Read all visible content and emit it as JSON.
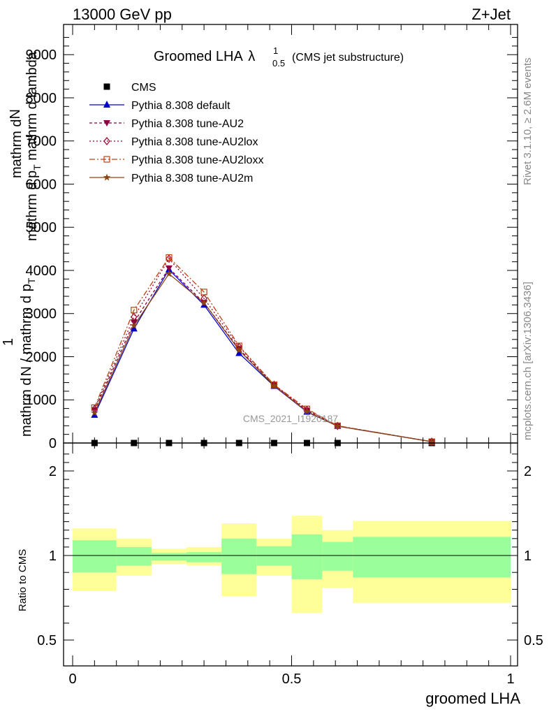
{
  "header": {
    "energy": "13000 GeV pp",
    "process": "Z+Jet"
  },
  "side": {
    "rivet": "Rivet 3.1.10, ≥ 2.6M events",
    "mcplots": "mcplots.cern.ch [arXiv:1306.3436]"
  },
  "watermark": "CMS_2021_I1920187",
  "main_title": {
    "prefix": "Groomed LHA",
    "lambda": "λ",
    "sup": "1",
    "sub": "0.5",
    "suffix": "(CMS jet substructure)"
  },
  "ylabel_main": {
    "line1": "mathrm d",
    "line1b": "N",
    "line2": "mathrm d p",
    "line2b": "T",
    "line2c": " mathrm d lambda",
    "frac_a": "1",
    "frac_b1": "mathrm d",
    "frac_b2": "N / mathrm d p",
    "frac_b3": "T"
  },
  "ylabel_ratio": "Ratio to CMS",
  "xlabel": "groomed LHA",
  "colors": {
    "cms": "#000000",
    "default": "#0000cc",
    "au2": "#8b0040",
    "au2lox": "#a0002a",
    "au2loxx": "#c04010",
    "au2m": "#8b4513",
    "band_outer": "#ffff99",
    "band_inner": "#99ff99"
  },
  "chart_data": [
    {
      "type": "line",
      "x_ticks": [
        "0",
        "0.5",
        "1"
      ],
      "y_ticks": [
        "0",
        "1000",
        "2000",
        "3000",
        "4000",
        "5000",
        "6000",
        "7000",
        "8000",
        "9000"
      ],
      "xlim": [
        0,
        1
      ],
      "ylim": [
        0,
        9700
      ],
      "legend_position": "top-left",
      "series": [
        {
          "key": "cms",
          "name": "CMS",
          "marker": "square",
          "x": [
            0.05,
            0.14,
            0.22,
            0.3,
            0.38,
            0.46,
            0.535,
            0.605,
            0.82
          ],
          "y": [
            0,
            0,
            0,
            0,
            0,
            0,
            0,
            0,
            0
          ]
        },
        {
          "key": "default",
          "name": "Pythia 8.308 default",
          "marker": "triangle-up",
          "x": [
            0.05,
            0.14,
            0.22,
            0.3,
            0.38,
            0.46,
            0.535,
            0.605,
            0.82
          ],
          "y": [
            650,
            2650,
            4020,
            3200,
            2080,
            1320,
            720,
            390,
            30
          ]
        },
        {
          "key": "au2",
          "name": "Pythia 8.308 tune-AU2",
          "marker": "triangle-down",
          "x": [
            0.05,
            0.14,
            0.22,
            0.3,
            0.38,
            0.46,
            0.535,
            0.605,
            0.82
          ],
          "y": [
            760,
            2800,
            4050,
            3250,
            2180,
            1340,
            750,
            390,
            30
          ]
        },
        {
          "key": "au2lox",
          "name": "Pythia 8.308 tune-AU2lox",
          "marker": "diamond-open",
          "x": [
            0.05,
            0.14,
            0.22,
            0.3,
            0.38,
            0.46,
            0.535,
            0.605,
            0.82
          ],
          "y": [
            790,
            2920,
            4270,
            3350,
            2230,
            1350,
            770,
            395,
            30
          ]
        },
        {
          "key": "au2loxx",
          "name": "Pythia 8.308 tune-AU2loxx",
          "marker": "square-open",
          "x": [
            0.05,
            0.14,
            0.22,
            0.3,
            0.38,
            0.46,
            0.535,
            0.605,
            0.82
          ],
          "y": [
            820,
            3080,
            4300,
            3500,
            2250,
            1350,
            790,
            400,
            30
          ]
        },
        {
          "key": "au2m",
          "name": "Pythia 8.308 tune-AU2m",
          "marker": "star",
          "x": [
            0.05,
            0.14,
            0.22,
            0.3,
            0.38,
            0.46,
            0.535,
            0.605,
            0.82
          ],
          "y": [
            700,
            2720,
            3920,
            3250,
            2150,
            1330,
            730,
            390,
            30
          ]
        }
      ]
    },
    {
      "type": "area",
      "y_ticks": [
        "0.5",
        "1",
        "2"
      ],
      "ylim": [
        0.35,
        2.35
      ],
      "reference_line": 1,
      "bins": [
        {
          "lo": 0.0,
          "hi": 0.1,
          "outer_lo": 0.79,
          "outer_hi": 1.32,
          "inner_lo": 0.9,
          "inner_hi": 1.18
        },
        {
          "lo": 0.1,
          "hi": 0.18,
          "outer_lo": 0.88,
          "outer_hi": 1.2,
          "inner_lo": 0.94,
          "inner_hi": 1.1
        },
        {
          "lo": 0.18,
          "hi": 0.26,
          "outer_lo": 0.95,
          "outer_hi": 1.08,
          "inner_lo": 0.97,
          "inner_hi": 1.03
        },
        {
          "lo": 0.26,
          "hi": 0.34,
          "outer_lo": 0.94,
          "outer_hi": 1.1,
          "inner_lo": 0.96,
          "inner_hi": 1.04
        },
        {
          "lo": 0.34,
          "hi": 0.42,
          "outer_lo": 0.76,
          "outer_hi": 1.38,
          "inner_lo": 0.89,
          "inner_hi": 1.2
        },
        {
          "lo": 0.42,
          "hi": 0.5,
          "outer_lo": 0.88,
          "outer_hi": 1.2,
          "inner_lo": 0.94,
          "inner_hi": 1.11
        },
        {
          "lo": 0.5,
          "hi": 0.57,
          "outer_lo": 0.66,
          "outer_hi": 1.47,
          "inner_lo": 0.86,
          "inner_hi": 1.25
        },
        {
          "lo": 0.57,
          "hi": 0.64,
          "outer_lo": 0.81,
          "outer_hi": 1.3,
          "inner_lo": 0.91,
          "inner_hi": 1.16
        },
        {
          "lo": 0.64,
          "hi": 1.0,
          "outer_lo": 0.72,
          "outer_hi": 1.41,
          "inner_lo": 0.87,
          "inner_hi": 1.22
        }
      ]
    }
  ]
}
